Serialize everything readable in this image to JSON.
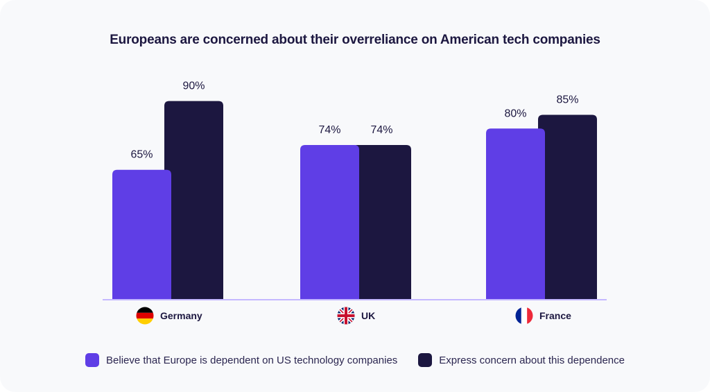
{
  "chart_data": {
    "type": "bar",
    "title": "Europeans are concerned about their overreliance on American tech companies",
    "xlabel": "",
    "ylabel": "",
    "categories": [
      "Germany",
      "UK",
      "France"
    ],
    "category_icons": [
      "germany-flag-icon",
      "uk-flag-icon",
      "france-flag-icon"
    ],
    "series": [
      {
        "name": "Believe that Europe is dependent on US technology companies",
        "color": "#5f3ee6",
        "values": [
          65,
          74,
          80
        ],
        "labels": [
          "65%",
          "74%",
          "80%"
        ]
      },
      {
        "name": "Express concern about this dependence",
        "color": "#1c1740",
        "values": [
          90,
          74,
          85
        ],
        "labels": [
          "90%",
          "74%",
          "85%"
        ]
      }
    ],
    "ylim": [
      18,
      100
    ],
    "grid": false,
    "legend_position": "bottom",
    "axis_color": "#c4b8ff"
  }
}
